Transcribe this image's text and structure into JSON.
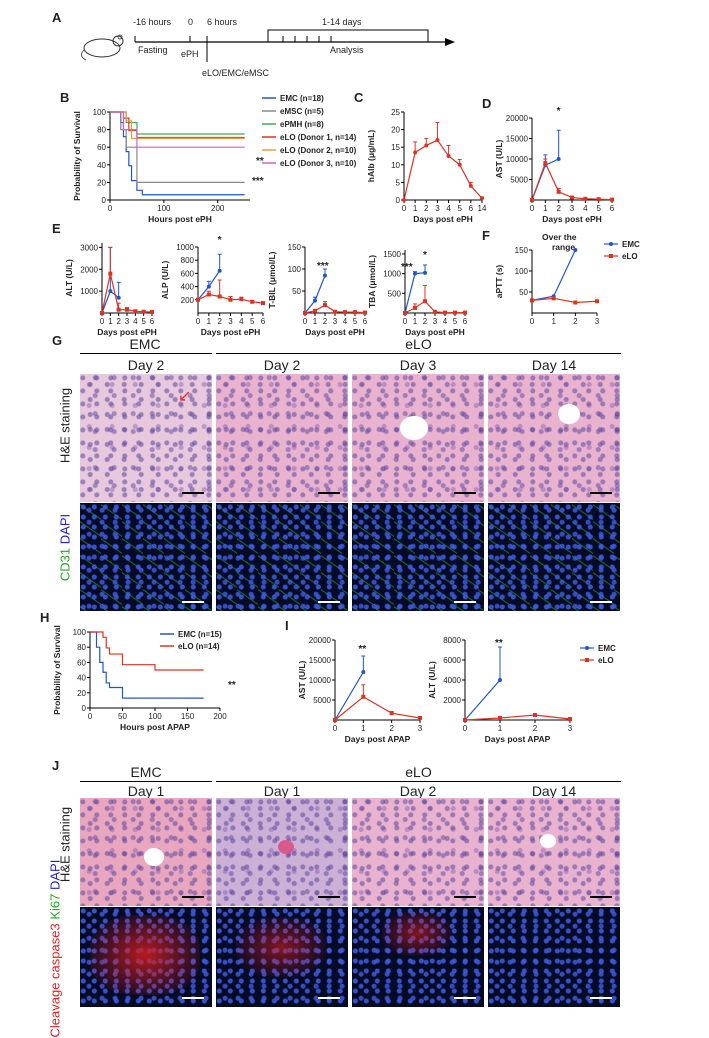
{
  "panels": {
    "A": {
      "letter": "A",
      "timepoints": [
        "-16 hours",
        "0",
        "6 hours"
      ],
      "fasting": "Fasting",
      "ePH": "ePH",
      "transplant": "eLO/EMC/eMSC",
      "days": "1-14 days",
      "analysis": "Analysis"
    },
    "G": {
      "letter": "G",
      "group_emc": "EMC",
      "group_elo": "eLO",
      "days": [
        "Day 2",
        "Day 2",
        "Day 3",
        "Day 14"
      ],
      "row1": "H&E staining",
      "row2_a": "CD31",
      "row2_b": "DAPI"
    },
    "J": {
      "letter": "J",
      "group_emc": "EMC",
      "group_elo": "eLO",
      "days": [
        "Day 1",
        "Day 1",
        "Day 2",
        "Day 14"
      ],
      "row1": "H&E staining",
      "row2_a": "Cleavage caspase3",
      "row2_b": "Ki67",
      "row2_c": "DAPI"
    }
  },
  "colors": {
    "emc": "#2255cc",
    "elo": "#dd3322",
    "emsc": "#888888",
    "epmh": "#44aa55",
    "d2": "#ee9944",
    "d3": "#cc66cc"
  },
  "chart_data": [
    {
      "id": "B",
      "letter": "B",
      "type": "line",
      "ylabel": "Probability of Survival",
      "xlabel": "Hours post ePH",
      "xlim": [
        0,
        260
      ],
      "ylim": [
        0,
        100
      ],
      "xticks": [
        "0",
        "100",
        "200"
      ],
      "yticks": [
        "0",
        "20",
        "40",
        "60",
        "80",
        "100"
      ],
      "series": [
        {
          "name": "EMC (n=18)",
          "color": "#2255cc",
          "x": [
            0,
            20,
            25,
            30,
            35,
            40,
            50,
            60,
            250
          ],
          "y": [
            100,
            88,
            72,
            55,
            39,
            22,
            11,
            6,
            6
          ]
        },
        {
          "name": "eMSC (n=5)",
          "color": "#888888",
          "x": [
            0,
            20,
            30,
            50,
            250
          ],
          "y": [
            100,
            80,
            60,
            20,
            20
          ]
        },
        {
          "name": "ePMH (n=8)",
          "color": "#44aa55",
          "x": [
            0,
            30,
            50,
            250
          ],
          "y": [
            100,
            88,
            75,
            75
          ]
        },
        {
          "name": "eLO (Donor 1, n=14)",
          "color": "#dd3322",
          "x": [
            0,
            25,
            35,
            50,
            250
          ],
          "y": [
            100,
            93,
            79,
            71,
            71
          ]
        },
        {
          "name": "eLO (Donor 2, n=10)",
          "color": "#ee9944",
          "x": [
            0,
            30,
            40,
            250
          ],
          "y": [
            100,
            90,
            70,
            70
          ]
        },
        {
          "name": "eLO (Donor 3, n=10)",
          "color": "#cc66cc",
          "x": [
            0,
            25,
            50,
            250
          ],
          "y": [
            100,
            80,
            60,
            60
          ]
        }
      ],
      "annotations": [
        "**",
        "***"
      ]
    },
    {
      "id": "C",
      "letter": "C",
      "type": "line",
      "ylabel": "hAlb (μg/mL)",
      "xlabel": "Days post ePH",
      "xlim": [
        0,
        14
      ],
      "ylim": [
        0,
        25
      ],
      "xticks": [
        "0",
        "1",
        "2",
        "3",
        "4",
        "5",
        "6",
        "14"
      ],
      "yticks": [
        "0",
        "5",
        "10",
        "15",
        "20",
        "25"
      ],
      "series": [
        {
          "name": "",
          "color": "#dd3322",
          "x": [
            0,
            1,
            2,
            3,
            4,
            5,
            6,
            7
          ],
          "y": [
            0,
            13.5,
            15.5,
            17,
            12.5,
            10,
            4,
            0.5
          ],
          "err": [
            0,
            3,
            2,
            5,
            3,
            1.5,
            1,
            0.3
          ]
        }
      ]
    },
    {
      "id": "D",
      "letter": "D",
      "type": "line",
      "ylabel": "AST (U/L)",
      "xlabel": "Days post ePH",
      "xlim": [
        0,
        6
      ],
      "ylim": [
        0,
        20000
      ],
      "xticks": [
        "0",
        "1",
        "2",
        "3",
        "4",
        "5",
        "6"
      ],
      "yticks": [
        "5000",
        "10000",
        "15000",
        "20000"
      ],
      "series": [
        {
          "name": "EMC",
          "color": "#2255cc",
          "x": [
            0,
            1,
            2
          ],
          "y": [
            0,
            8500,
            10000
          ],
          "err": [
            0,
            2500,
            7000
          ]
        },
        {
          "name": "eLO",
          "color": "#dd3322",
          "x": [
            0,
            1,
            2,
            3,
            4,
            5,
            6
          ],
          "y": [
            0,
            9000,
            2000,
            600,
            300,
            200,
            100
          ],
          "err": [
            0,
            1000,
            800,
            200,
            100,
            80,
            50
          ]
        }
      ],
      "annotations": [
        "*"
      ]
    },
    {
      "id": "E1",
      "letter": "E",
      "type": "line",
      "ylabel": "ALT (U/L)",
      "xlabel": "Days post ePH",
      "xlim": [
        0,
        6
      ],
      "ylim": [
        0,
        3200
      ],
      "xticks": [
        "0",
        "1",
        "2",
        "3",
        "4",
        "5",
        "6"
      ],
      "yticks": [
        "1000",
        "2000",
        "3000"
      ],
      "series": [
        {
          "name": "EMC",
          "color": "#2255cc",
          "x": [
            0,
            1,
            2
          ],
          "y": [
            0,
            1000,
            700
          ],
          "err": [
            0,
            2000,
            700
          ]
        },
        {
          "name": "eLO",
          "color": "#dd3322",
          "x": [
            0,
            1,
            2,
            3,
            4,
            5,
            6
          ],
          "y": [
            0,
            1800,
            150,
            150,
            80,
            60,
            50
          ],
          "err": [
            0,
            1200,
            300,
            100,
            50,
            30,
            20
          ]
        }
      ]
    },
    {
      "id": "E2",
      "type": "line",
      "ylabel": "ALP (U/L)",
      "xlabel": "Days post ePH",
      "xlim": [
        0,
        6
      ],
      "ylim": [
        0,
        1000
      ],
      "xticks": [
        "0",
        "1",
        "2",
        "3",
        "4",
        "5",
        "6"
      ],
      "yticks": [
        "200",
        "400",
        "600",
        "800",
        "1000"
      ],
      "series": [
        {
          "name": "EMC",
          "color": "#2255cc",
          "x": [
            0,
            1,
            2
          ],
          "y": [
            200,
            400,
            640
          ],
          "err": [
            0,
            80,
            250
          ]
        },
        {
          "name": "eLO",
          "color": "#dd3322",
          "x": [
            0,
            1,
            2,
            3,
            4,
            5,
            6
          ],
          "y": [
            200,
            280,
            250,
            200,
            210,
            170,
            150
          ],
          "err": [
            0,
            50,
            250,
            50,
            30,
            20,
            20
          ]
        }
      ],
      "annotations": [
        "*"
      ]
    },
    {
      "id": "E3",
      "type": "line",
      "ylabel": "T-BIL (μmol/L)",
      "xlabel": "Days post ePH",
      "xlim": [
        0,
        6
      ],
      "ylim": [
        0,
        150
      ],
      "xticks": [
        "0",
        "1",
        "2",
        "3",
        "4",
        "5",
        "6"
      ],
      "yticks": [
        "50",
        "100",
        "150"
      ],
      "series": [
        {
          "name": "EMC",
          "color": "#2255cc",
          "x": [
            0,
            1,
            2
          ],
          "y": [
            0,
            28,
            85
          ],
          "err": [
            0,
            8,
            15
          ]
        },
        {
          "name": "eLO",
          "color": "#dd3322",
          "x": [
            0,
            1,
            2,
            3,
            4,
            5,
            6
          ],
          "y": [
            0,
            5,
            18,
            3,
            2,
            2,
            1
          ],
          "err": [
            0,
            3,
            8,
            1,
            1,
            1,
            0.5
          ]
        }
      ],
      "annotations": [
        "***"
      ]
    },
    {
      "id": "E4",
      "type": "line",
      "ylabel": "TBA (μmol/L)",
      "xlabel": "Days post ePH",
      "xlim": [
        0,
        6
      ],
      "ylim": [
        0,
        1600
      ],
      "xticks": [
        "0",
        "1",
        "2",
        "3",
        "4",
        "5",
        "6"
      ],
      "yticks": [
        "500",
        "1000",
        "1500"
      ],
      "series": [
        {
          "name": "EMC",
          "color": "#2255cc",
          "x": [
            0,
            1,
            2
          ],
          "y": [
            0,
            1000,
            1020
          ],
          "err": [
            0,
            50,
            200
          ]
        },
        {
          "name": "eLO",
          "color": "#dd3322",
          "x": [
            0,
            1,
            2,
            3,
            4,
            5,
            6
          ],
          "y": [
            0,
            130,
            300,
            30,
            10,
            10,
            10
          ],
          "err": [
            0,
            100,
            400,
            20,
            5,
            5,
            5
          ]
        }
      ],
      "annotations": [
        "***",
        "*"
      ]
    },
    {
      "id": "F",
      "letter": "F",
      "type": "line",
      "ylabel": "aPTT (s)",
      "xlabel": "",
      "xlim": [
        0,
        3
      ],
      "ylim": [
        0,
        150
      ],
      "xticks": [
        "0",
        "1",
        "2",
        "3"
      ],
      "yticks": [
        "50",
        "100",
        "150"
      ],
      "title": "Over the range",
      "legend": [
        "EMC",
        "eLO"
      ],
      "series": [
        {
          "name": "EMC",
          "color": "#2255cc",
          "x": [
            0,
            1,
            2
          ],
          "y": [
            30,
            40,
            150
          ]
        },
        {
          "name": "eLO",
          "color": "#dd3322",
          "x": [
            0,
            1,
            2,
            3
          ],
          "y": [
            30,
            35,
            25,
            28
          ]
        }
      ]
    },
    {
      "id": "H",
      "letter": "H",
      "type": "line",
      "ylabel": "Probability of Survival",
      "xlabel": "Hours post APAP",
      "xlim": [
        0,
        200
      ],
      "ylim": [
        0,
        100
      ],
      "xticks": [
        "0",
        "50",
        "100",
        "150",
        "200"
      ],
      "yticks": [
        "0",
        "20",
        "40",
        "60",
        "80",
        "100"
      ],
      "series": [
        {
          "name": "EMC (n=15)",
          "color": "#2255cc",
          "x": [
            0,
            10,
            15,
            20,
            25,
            30,
            50,
            175
          ],
          "y": [
            100,
            80,
            60,
            47,
            33,
            27,
            13,
            13
          ]
        },
        {
          "name": "eLO (n=14)",
          "color": "#dd3322",
          "x": [
            0,
            20,
            25,
            30,
            50,
            100,
            175
          ],
          "y": [
            100,
            93,
            79,
            71,
            57,
            50,
            50
          ]
        }
      ],
      "annotations": [
        "**"
      ]
    },
    {
      "id": "I1",
      "letter": "I",
      "type": "line",
      "ylabel": "AST (U/L)",
      "xlabel": "Days post APAP",
      "xlim": [
        0,
        3
      ],
      "ylim": [
        0,
        20000
      ],
      "xticks": [
        "0",
        "1",
        "2",
        "3"
      ],
      "yticks": [
        "5000",
        "10000",
        "15000",
        "20000"
      ],
      "series": [
        {
          "name": "EMC",
          "color": "#2255cc",
          "x": [
            0,
            1
          ],
          "y": [
            0,
            12000
          ],
          "err": [
            0,
            4000
          ]
        },
        {
          "name": "eLO",
          "color": "#dd3322",
          "x": [
            0,
            1,
            2,
            3
          ],
          "y": [
            0,
            5800,
            1700,
            500
          ],
          "err": [
            0,
            3000,
            400,
            100
          ]
        }
      ],
      "annotations": [
        "**"
      ]
    },
    {
      "id": "I2",
      "type": "line",
      "ylabel": "ALT (U/L)",
      "xlabel": "Days post APAP",
      "xlim": [
        0,
        3
      ],
      "ylim": [
        0,
        8000
      ],
      "xticks": [
        "0",
        "1",
        "2",
        "3"
      ],
      "yticks": [
        "2000",
        "4000",
        "6000",
        "8000"
      ],
      "legend": [
        "EMC",
        "eLO"
      ],
      "series": [
        {
          "name": "EMC",
          "color": "#2255cc",
          "x": [
            0,
            1
          ],
          "y": [
            0,
            4000
          ],
          "err": [
            0,
            3300
          ]
        },
        {
          "name": "eLO",
          "color": "#dd3322",
          "x": [
            0,
            1,
            2,
            3
          ],
          "y": [
            0,
            200,
            500,
            100
          ],
          "err": [
            0,
            50,
            100,
            30
          ]
        }
      ],
      "annotations": [
        "**"
      ]
    }
  ]
}
